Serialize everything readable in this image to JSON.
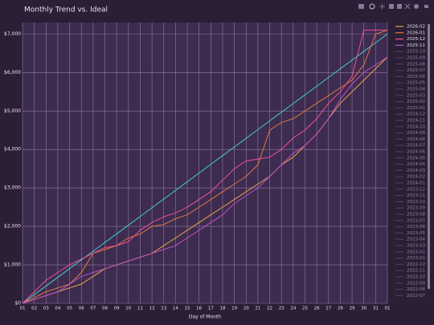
{
  "chart_data": {
    "type": "line",
    "title": "Monthly Trend vs. Ideal",
    "x_label": "Day of Month",
    "categories": [
      "01",
      "02",
      "03",
      "04",
      "05",
      "06",
      "07",
      "08",
      "09",
      "10",
      "11",
      "12",
      "13",
      "14",
      "15",
      "16",
      "17",
      "18",
      "19",
      "20",
      "21",
      "22",
      "23",
      "24",
      "25",
      "26",
      "27",
      "28",
      "29",
      "30",
      "31",
      "01"
    ],
    "ylim": [
      0,
      7300
    ],
    "yticks": [
      {
        "value": 0,
        "label": "$0"
      },
      {
        "value": 1000,
        "label": "$1,000"
      },
      {
        "value": 2000,
        "label": "$2,000"
      },
      {
        "value": 3000,
        "label": "$3,000"
      },
      {
        "value": 4000,
        "label": "$4,000"
      },
      {
        "value": 5000,
        "label": "$5,000"
      },
      {
        "value": 6000,
        "label": "$6,000"
      },
      {
        "value": 7000,
        "label": "$7,000"
      }
    ],
    "grid": true,
    "legend": "right",
    "series": [
      {
        "color": "#3fd0c8",
        "values": [
          0,
          226,
          452,
          677,
          903,
          1129,
          1355,
          1581,
          1806,
          2032,
          2258,
          2484,
          2710,
          2935,
          3161,
          3387,
          3613,
          3839,
          4065,
          4290,
          4516,
          4742,
          4968,
          5194,
          5419,
          5645,
          5871,
          6097,
          6323,
          6548,
          6774,
          7000
        ]
      },
      {
        "name": "2026-02",
        "color": "#e8a64a",
        "values": [
          0,
          100,
          200,
          300,
          400,
          500,
          700,
          900,
          1000,
          1100,
          1200,
          1300,
          1500,
          1700,
          1900,
          2100,
          2300,
          2500,
          2700,
          2900,
          3100,
          3300,
          3600,
          3800,
          4100,
          4400,
          4800,
          5200,
          5500,
          5800,
          6100,
          6400
        ]
      },
      {
        "name": "2026-01",
        "color": "#e07a3a",
        "values": [
          0,
          150,
          300,
          400,
          500,
          800,
          1300,
          1400,
          1500,
          1700,
          1800,
          2000,
          2050,
          2200,
          2300,
          2500,
          2700,
          2900,
          3100,
          3300,
          3600,
          4500,
          4700,
          4800,
          5000,
          5200,
          5400,
          5600,
          5800,
          6200,
          7000,
          7100
        ]
      },
      {
        "name": "2025-12",
        "color": "#f0509a",
        "values": [
          0,
          300,
          600,
          800,
          1000,
          1150,
          1300,
          1450,
          1500,
          1600,
          1900,
          2100,
          2250,
          2350,
          2500,
          2700,
          2900,
          3200,
          3500,
          3700,
          3750,
          3800,
          4000,
          4300,
          4500,
          4800,
          5200,
          5500,
          5900,
          7100,
          7100,
          7100
        ]
      },
      {
        "name": "2025-11",
        "color": "#c050c0",
        "values": [
          0,
          100,
          200,
          300,
          500,
          700,
          800,
          900,
          1000,
          1100,
          1200,
          1300,
          1400,
          1500,
          1700,
          1900,
          2100,
          2300,
          2600,
          2800,
          3000,
          3300,
          3600,
          3900,
          4100,
          4400,
          4800,
          5300,
          5700,
          6000,
          6200,
          6400
        ]
      }
    ],
    "hidden_color": "#6e5a82",
    "hidden_legend": [
      "2025-10",
      "2025-09",
      "2025-08",
      "2025-07",
      "2025-06",
      "2025-05",
      "2025-04",
      "2025-03",
      "2025-02",
      "2025-01",
      "2024-12",
      "2024-11",
      "2024-10",
      "2024-09",
      "2024-08",
      "2024-07",
      "2024-06",
      "2024-05",
      "2024-04",
      "2024-03",
      "2024-02",
      "2024-01",
      "2023-12",
      "2023-11",
      "2023-10",
      "2023-09",
      "2023-08",
      "2023-07",
      "2023-06",
      "2023-05",
      "2023-04",
      "2023-03",
      "2023-02",
      "2023-01",
      "2022-12",
      "2022-11",
      "2022-10",
      "2022-09",
      "2022-08",
      "2022-07"
    ]
  }
}
